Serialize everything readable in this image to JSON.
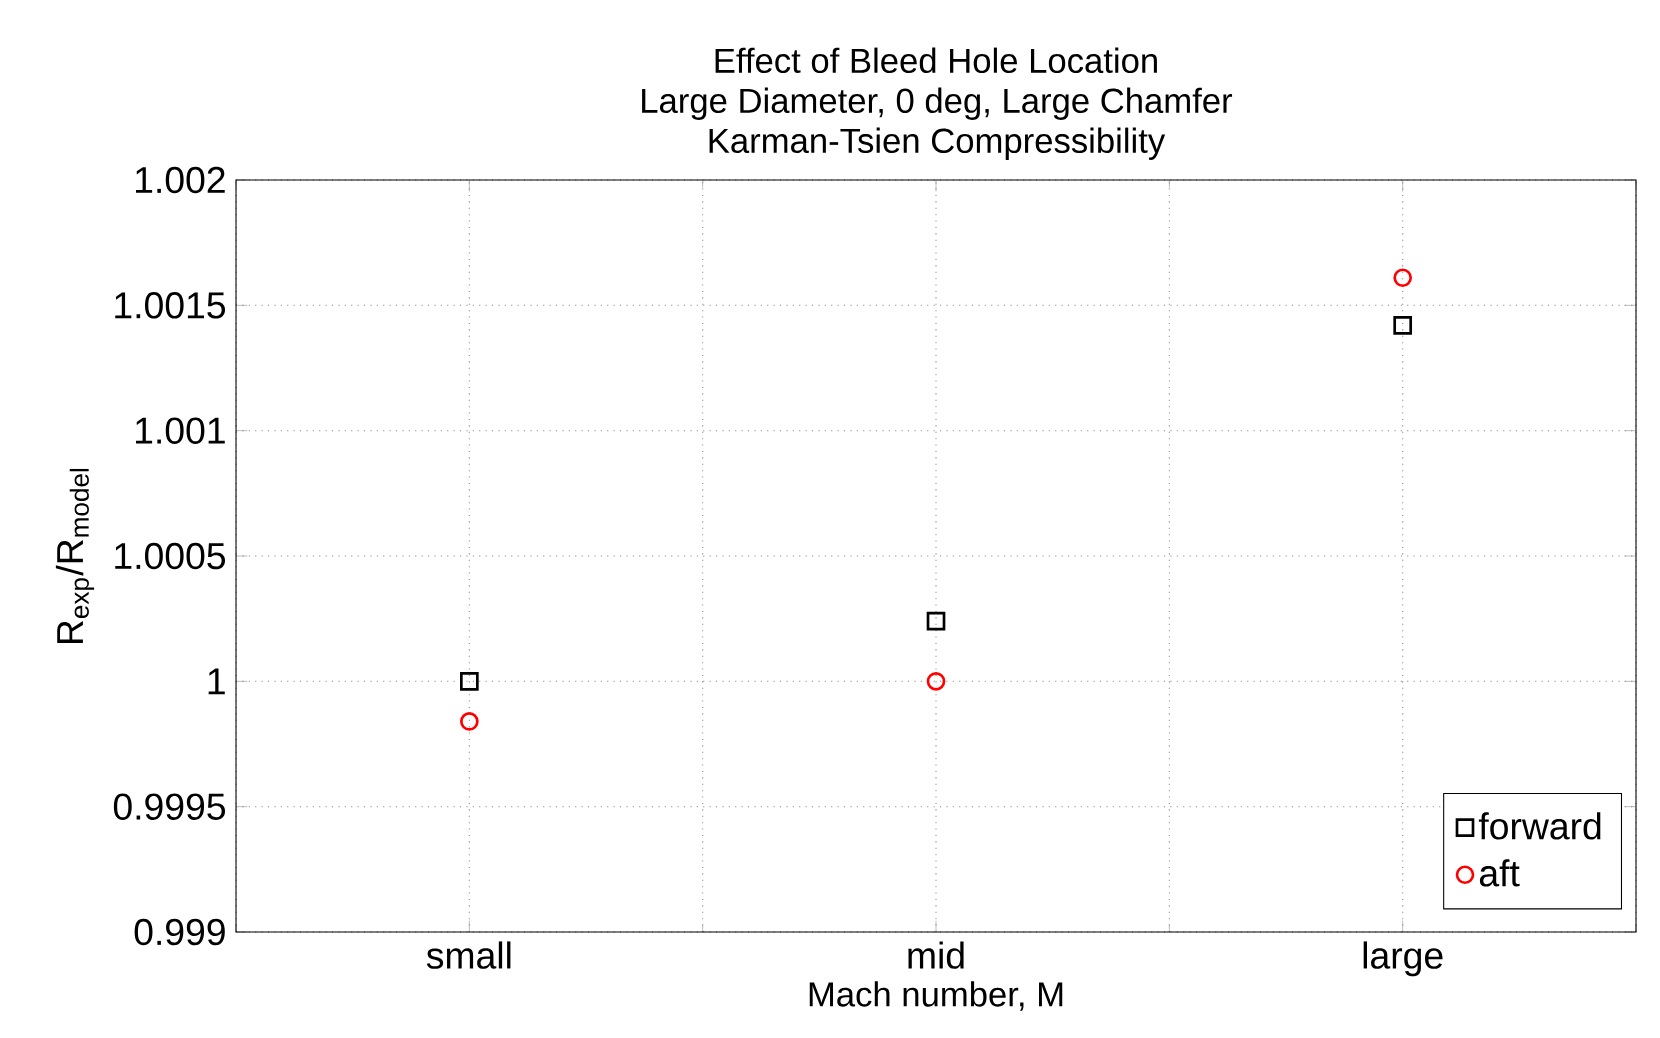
{
  "chart_data": {
    "type": "scatter",
    "title": "Effect of Bleed Hole Location\nLarge Diameter, 0 deg, Large Chamfer\nKarman-Tsien Compressibility",
    "xlabel": "Mach number, M",
    "ylabel": "R$_{exp}$/R$_{model}$",
    "categories": [
      "small",
      "mid",
      "large"
    ],
    "series": [
      {
        "name": "forward",
        "color": "#000000",
        "marker": "square",
        "values": [
          1.0,
          1.00024,
          1.00142
        ]
      },
      {
        "name": "aft",
        "color": "#ff0000",
        "marker": "circle",
        "values": [
          0.99984,
          1.0,
          1.00161
        ]
      }
    ],
    "ylim": [
      0.999,
      1.002
    ],
    "yticks": [
      {
        "value": 0.999,
        "label": "0.999"
      },
      {
        "value": 0.9995,
        "label": "0.9995"
      },
      {
        "value": 1,
        "label": "1"
      },
      {
        "value": 1.0005,
        "label": "1.0005"
      },
      {
        "value": 1.001,
        "label": "1.001"
      },
      {
        "value": 1.0015,
        "label": "1.0015"
      },
      {
        "value": 1.002,
        "label": "1.002"
      }
    ],
    "grid": true,
    "legend": "bottom right"
  }
}
